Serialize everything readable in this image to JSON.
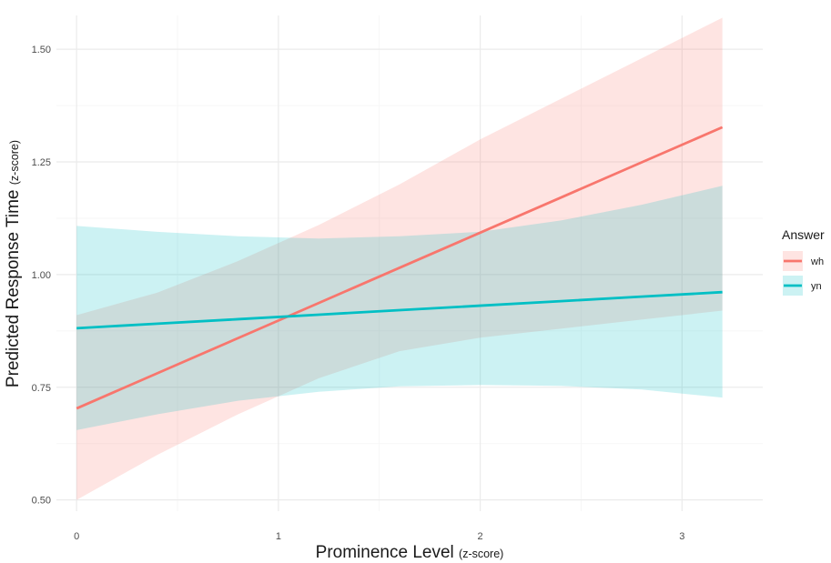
{
  "chart_data": {
    "type": "line",
    "x_axis": {
      "title": "Prominence Level",
      "title_suffix": "(z-score)",
      "range": [
        -0.1,
        3.4
      ],
      "ticks": [
        0,
        1,
        2,
        3
      ],
      "tick_labels": [
        "0",
        "1",
        "2",
        "3"
      ]
    },
    "y_axis": {
      "title": "Predicted Response Time",
      "title_suffix": "(z-score)",
      "range": [
        0.475,
        1.575
      ],
      "ticks": [
        0.5,
        0.75,
        1.0,
        1.25,
        1.5
      ],
      "tick_labels": [
        "0.50",
        "0.75",
        "1.00",
        "1.25",
        "1.50"
      ]
    },
    "grid": true,
    "legend": {
      "title": "Answer",
      "position": "right",
      "entries": [
        "wh",
        "yn"
      ]
    },
    "series": [
      {
        "name": "wh",
        "color": "#F8766D",
        "ribbon_color": "#F8766D",
        "x": [
          0,
          0.4,
          0.8,
          1.2,
          1.6,
          2.0,
          2.4,
          2.8,
          3.2
        ],
        "fit": [
          0.703,
          0.781,
          0.859,
          0.937,
          1.015,
          1.093,
          1.171,
          1.249,
          1.327
        ],
        "lower": [
          0.5,
          0.6,
          0.69,
          0.77,
          0.83,
          0.86,
          0.88,
          0.9,
          0.92
        ],
        "upper": [
          0.91,
          0.96,
          1.03,
          1.11,
          1.2,
          1.3,
          1.39,
          1.48,
          1.57
        ]
      },
      {
        "name": "yn",
        "color": "#00BFC4",
        "ribbon_color": "#00BFC4",
        "x": [
          0,
          0.4,
          0.8,
          1.2,
          1.6,
          2.0,
          2.4,
          2.8,
          3.2
        ],
        "fit": [
          0.881,
          0.891,
          0.901,
          0.911,
          0.921,
          0.931,
          0.941,
          0.951,
          0.961
        ],
        "lower": [
          0.655,
          0.69,
          0.72,
          0.74,
          0.752,
          0.755,
          0.753,
          0.745,
          0.727
        ],
        "upper": [
          1.108,
          1.095,
          1.085,
          1.08,
          1.085,
          1.095,
          1.12,
          1.155,
          1.197
        ]
      }
    ]
  }
}
